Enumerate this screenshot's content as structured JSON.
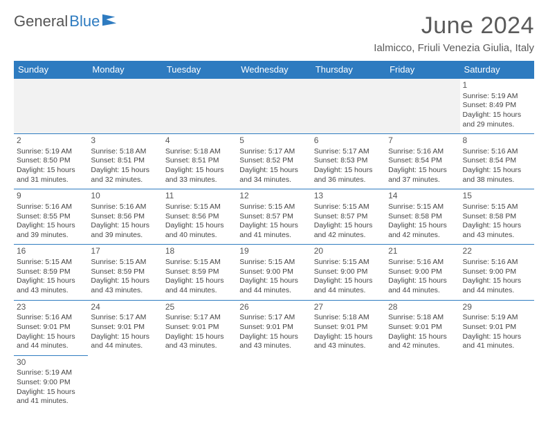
{
  "brand": {
    "part1": "General",
    "part2": "Blue"
  },
  "title": "June 2024",
  "location": "Ialmicco, Friuli Venezia Giulia, Italy",
  "colors": {
    "header_bg": "#2e7bc0",
    "header_text": "#ffffff",
    "border": "#2e7bc0",
    "empty_bg": "#f2f2f2",
    "text": "#444444",
    "title_text": "#5a5a5a"
  },
  "weekday_labels": [
    "Sunday",
    "Monday",
    "Tuesday",
    "Wednesday",
    "Thursday",
    "Friday",
    "Saturday"
  ],
  "weeks": [
    [
      null,
      null,
      null,
      null,
      null,
      null,
      {
        "n": "1",
        "sunrise": "5:19 AM",
        "sunset": "8:49 PM",
        "daylight": "15 hours and 29 minutes."
      }
    ],
    [
      {
        "n": "2",
        "sunrise": "5:19 AM",
        "sunset": "8:50 PM",
        "daylight": "15 hours and 31 minutes."
      },
      {
        "n": "3",
        "sunrise": "5:18 AM",
        "sunset": "8:51 PM",
        "daylight": "15 hours and 32 minutes."
      },
      {
        "n": "4",
        "sunrise": "5:18 AM",
        "sunset": "8:51 PM",
        "daylight": "15 hours and 33 minutes."
      },
      {
        "n": "5",
        "sunrise": "5:17 AM",
        "sunset": "8:52 PM",
        "daylight": "15 hours and 34 minutes."
      },
      {
        "n": "6",
        "sunrise": "5:17 AM",
        "sunset": "8:53 PM",
        "daylight": "15 hours and 36 minutes."
      },
      {
        "n": "7",
        "sunrise": "5:16 AM",
        "sunset": "8:54 PM",
        "daylight": "15 hours and 37 minutes."
      },
      {
        "n": "8",
        "sunrise": "5:16 AM",
        "sunset": "8:54 PM",
        "daylight": "15 hours and 38 minutes."
      }
    ],
    [
      {
        "n": "9",
        "sunrise": "5:16 AM",
        "sunset": "8:55 PM",
        "daylight": "15 hours and 39 minutes."
      },
      {
        "n": "10",
        "sunrise": "5:16 AM",
        "sunset": "8:56 PM",
        "daylight": "15 hours and 39 minutes."
      },
      {
        "n": "11",
        "sunrise": "5:15 AM",
        "sunset": "8:56 PM",
        "daylight": "15 hours and 40 minutes."
      },
      {
        "n": "12",
        "sunrise": "5:15 AM",
        "sunset": "8:57 PM",
        "daylight": "15 hours and 41 minutes."
      },
      {
        "n": "13",
        "sunrise": "5:15 AM",
        "sunset": "8:57 PM",
        "daylight": "15 hours and 42 minutes."
      },
      {
        "n": "14",
        "sunrise": "5:15 AM",
        "sunset": "8:58 PM",
        "daylight": "15 hours and 42 minutes."
      },
      {
        "n": "15",
        "sunrise": "5:15 AM",
        "sunset": "8:58 PM",
        "daylight": "15 hours and 43 minutes."
      }
    ],
    [
      {
        "n": "16",
        "sunrise": "5:15 AM",
        "sunset": "8:59 PM",
        "daylight": "15 hours and 43 minutes."
      },
      {
        "n": "17",
        "sunrise": "5:15 AM",
        "sunset": "8:59 PM",
        "daylight": "15 hours and 43 minutes."
      },
      {
        "n": "18",
        "sunrise": "5:15 AM",
        "sunset": "8:59 PM",
        "daylight": "15 hours and 44 minutes."
      },
      {
        "n": "19",
        "sunrise": "5:15 AM",
        "sunset": "9:00 PM",
        "daylight": "15 hours and 44 minutes."
      },
      {
        "n": "20",
        "sunrise": "5:15 AM",
        "sunset": "9:00 PM",
        "daylight": "15 hours and 44 minutes."
      },
      {
        "n": "21",
        "sunrise": "5:16 AM",
        "sunset": "9:00 PM",
        "daylight": "15 hours and 44 minutes."
      },
      {
        "n": "22",
        "sunrise": "5:16 AM",
        "sunset": "9:00 PM",
        "daylight": "15 hours and 44 minutes."
      }
    ],
    [
      {
        "n": "23",
        "sunrise": "5:16 AM",
        "sunset": "9:01 PM",
        "daylight": "15 hours and 44 minutes."
      },
      {
        "n": "24",
        "sunrise": "5:17 AM",
        "sunset": "9:01 PM",
        "daylight": "15 hours and 44 minutes."
      },
      {
        "n": "25",
        "sunrise": "5:17 AM",
        "sunset": "9:01 PM",
        "daylight": "15 hours and 43 minutes."
      },
      {
        "n": "26",
        "sunrise": "5:17 AM",
        "sunset": "9:01 PM",
        "daylight": "15 hours and 43 minutes."
      },
      {
        "n": "27",
        "sunrise": "5:18 AM",
        "sunset": "9:01 PM",
        "daylight": "15 hours and 43 minutes."
      },
      {
        "n": "28",
        "sunrise": "5:18 AM",
        "sunset": "9:01 PM",
        "daylight": "15 hours and 42 minutes."
      },
      {
        "n": "29",
        "sunrise": "5:19 AM",
        "sunset": "9:01 PM",
        "daylight": "15 hours and 41 minutes."
      }
    ],
    [
      {
        "n": "30",
        "sunrise": "5:19 AM",
        "sunset": "9:00 PM",
        "daylight": "15 hours and 41 minutes."
      },
      null,
      null,
      null,
      null,
      null,
      null
    ]
  ],
  "labels": {
    "sunrise": "Sunrise:",
    "sunset": "Sunset:",
    "daylight": "Daylight:"
  }
}
